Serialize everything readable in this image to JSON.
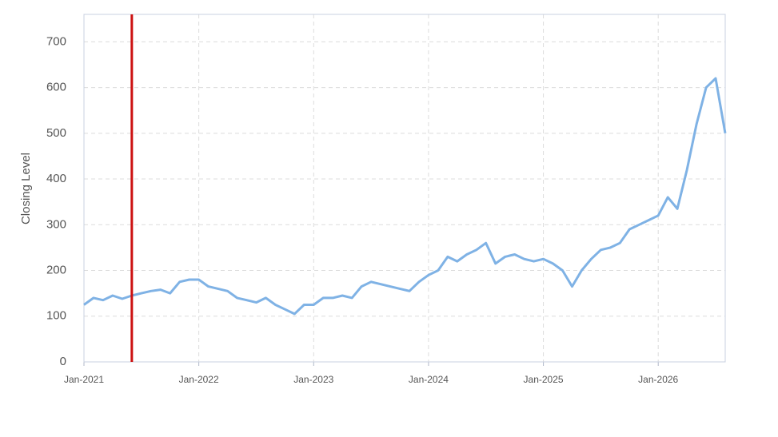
{
  "chart_data": {
    "type": "line",
    "y_label": "Closing Level",
    "x": [
      "2021-01",
      "2021-02",
      "2021-03",
      "2021-04",
      "2021-05",
      "2021-06",
      "2021-07",
      "2021-08",
      "2021-09",
      "2021-10",
      "2021-11",
      "2021-12",
      "2022-01",
      "2022-02",
      "2022-03",
      "2022-04",
      "2022-05",
      "2022-06",
      "2022-07",
      "2022-08",
      "2022-09",
      "2022-10",
      "2022-11",
      "2022-12",
      "2023-01",
      "2023-02",
      "2023-03",
      "2023-04",
      "2023-05",
      "2023-06",
      "2023-07",
      "2023-08",
      "2023-09",
      "2023-10",
      "2023-11",
      "2023-12",
      "2024-01",
      "2024-02",
      "2024-03",
      "2024-04",
      "2024-05",
      "2024-06",
      "2024-07",
      "2024-08",
      "2024-09",
      "2024-10",
      "2024-11",
      "2024-12",
      "2025-01",
      "2025-02",
      "2025-03",
      "2025-04",
      "2025-05",
      "2025-06",
      "2025-07",
      "2025-08",
      "2025-09",
      "2025-10",
      "2025-11",
      "2025-12",
      "2026-01",
      "2026-02",
      "2026-03",
      "2026-04",
      "2026-05",
      "2026-06",
      "2026-07",
      "2026-08"
    ],
    "series": [
      {
        "color": "#7fb2e5",
        "values": [
          125,
          140,
          135,
          145,
          138,
          145,
          150,
          155,
          158,
          150,
          175,
          180,
          180,
          165,
          160,
          155,
          140,
          135,
          130,
          140,
          125,
          115,
          105,
          125,
          125,
          140,
          140,
          145,
          140,
          165,
          175,
          170,
          165,
          160,
          155,
          175,
          190,
          200,
          230,
          220,
          235,
          245,
          260,
          215,
          230,
          235,
          225,
          220,
          225,
          215,
          200,
          165,
          200,
          225,
          245,
          250,
          260,
          290,
          300,
          310,
          320,
          360,
          335,
          420,
          520,
          600,
          620,
          500
        ]
      }
    ],
    "xlim": [
      "2021-01",
      "2026-08"
    ],
    "xticks": [
      {
        "value": "2021-01",
        "label": "Jan-2021"
      },
      {
        "value": "2022-01",
        "label": "Jan-2022"
      },
      {
        "value": "2023-01",
        "label": "Jan-2023"
      },
      {
        "value": "2024-01",
        "label": "Jan-2024"
      },
      {
        "value": "2025-01",
        "label": "Jan-2025"
      },
      {
        "value": "2026-01",
        "label": "Jan-2026"
      }
    ],
    "ylim": [
      0,
      760
    ],
    "yticks": [
      0,
      100,
      200,
      300,
      400,
      500,
      600,
      700
    ],
    "grid": true,
    "vline": {
      "x": "2021-06",
      "color": "#cc1111"
    }
  }
}
